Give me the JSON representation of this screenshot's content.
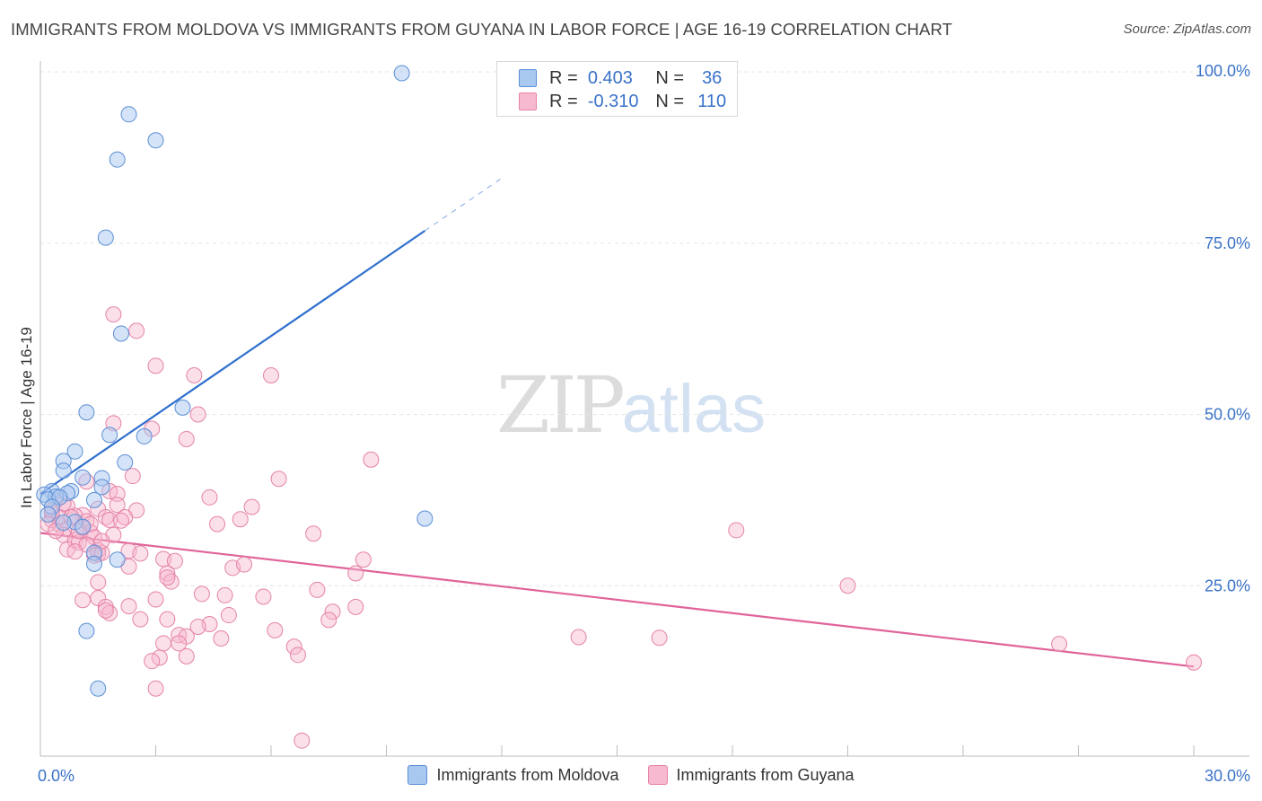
{
  "title": "IMMIGRANTS FROM MOLDOVA VS IMMIGRANTS FROM GUYANA IN LABOR FORCE | AGE 16-19 CORRELATION CHART",
  "source": "Source: ZipAtlas.com",
  "watermark": {
    "zip": "ZIP",
    "atlas": "atlas"
  },
  "legend": {
    "rows": [
      {
        "r_label": "R =",
        "r_value": "0.403",
        "n_label": "N =",
        "n_value": "36"
      },
      {
        "r_label": "R =",
        "r_value": "-0.310",
        "n_label": "N =",
        "n_value": "110"
      }
    ]
  },
  "chart_data": {
    "type": "scatter",
    "title": "IMMIGRANTS FROM MOLDOVA VS IMMIGRANTS FROM GUYANA IN LABOR FORCE | AGE 16-19 CORRELATION CHART",
    "xlabel": "",
    "ylabel": "In Labor Force | Age 16-19",
    "xlim": [
      0,
      30
    ],
    "ylim": [
      0,
      105
    ],
    "x_tick_labels": [
      "0.0%",
      "30.0%"
    ],
    "y_ticks": [
      25,
      50,
      75,
      100
    ],
    "y_tick_labels": [
      "25.0%",
      "50.0%",
      "75.0%",
      "100.0%"
    ],
    "grid": true,
    "legend_position": "top-center",
    "colors": {
      "moldova_fill": "#a9c8f0",
      "moldova_stroke": "#5b8fd6",
      "moldova_line": "#2f6fcd",
      "guyana_fill": "#f7b9cf",
      "guyana_stroke": "#e583a8",
      "guyana_line": "#e0639a",
      "axis_label": "#3a72c8",
      "grid": "#e5e5e5"
    },
    "series": [
      {
        "name": "Immigrants from Moldova",
        "r": 0.403,
        "n": 36,
        "trend": {
          "x0": 0,
          "y0": 38.4,
          "x1": 10.0,
          "y1": 76.8,
          "dash_to_x": 12.0
        },
        "points": [
          [
            9.4,
            99.8
          ],
          [
            2.3,
            93.8
          ],
          [
            3.0,
            90.0
          ],
          [
            2.0,
            87.2
          ],
          [
            1.7,
            75.8
          ],
          [
            2.1,
            61.8
          ],
          [
            1.2,
            50.3
          ],
          [
            3.7,
            51.0
          ],
          [
            1.8,
            47.0
          ],
          [
            2.7,
            46.8
          ],
          [
            0.9,
            44.6
          ],
          [
            0.6,
            43.2
          ],
          [
            2.2,
            43.0
          ],
          [
            0.6,
            41.8
          ],
          [
            1.1,
            40.8
          ],
          [
            1.6,
            40.7
          ],
          [
            1.6,
            39.4
          ],
          [
            0.8,
            38.8
          ],
          [
            0.7,
            38.5
          ],
          [
            0.3,
            38.8
          ],
          [
            0.1,
            38.3
          ],
          [
            0.4,
            38.0
          ],
          [
            0.2,
            37.6
          ],
          [
            0.5,
            37.9
          ],
          [
            1.4,
            37.5
          ],
          [
            0.3,
            36.5
          ],
          [
            0.2,
            35.4
          ],
          [
            0.9,
            34.3
          ],
          [
            1.1,
            33.6
          ],
          [
            10.0,
            34.8
          ],
          [
            1.4,
            29.8
          ],
          [
            1.4,
            28.2
          ],
          [
            2.0,
            28.8
          ],
          [
            1.2,
            18.4
          ],
          [
            1.5,
            10.0
          ],
          [
            0.6,
            34.2
          ]
        ]
      },
      {
        "name": "Immigrants from Guyana",
        "r": -0.31,
        "n": 110,
        "trend": {
          "x0": 0,
          "y0": 32.7,
          "x1": 30.0,
          "y1": 13.2
        },
        "points": [
          [
            1.9,
            64.6
          ],
          [
            2.5,
            62.2
          ],
          [
            3.0,
            57.1
          ],
          [
            4.0,
            55.7
          ],
          [
            6.0,
            55.7
          ],
          [
            4.1,
            50.0
          ],
          [
            1.9,
            48.7
          ],
          [
            2.9,
            47.9
          ],
          [
            3.8,
            46.4
          ],
          [
            8.6,
            43.4
          ],
          [
            2.4,
            41.0
          ],
          [
            6.2,
            40.6
          ],
          [
            1.2,
            40.2
          ],
          [
            1.8,
            38.8
          ],
          [
            4.4,
            37.9
          ],
          [
            2.0,
            38.4
          ],
          [
            0.4,
            37.4
          ],
          [
            0.7,
            36.6
          ],
          [
            2.0,
            36.8
          ],
          [
            5.5,
            36.5
          ],
          [
            1.5,
            36.2
          ],
          [
            2.5,
            36.0
          ],
          [
            0.3,
            35.6
          ],
          [
            1.1,
            35.3
          ],
          [
            0.9,
            35.2
          ],
          [
            1.7,
            35.0
          ],
          [
            2.2,
            35.0
          ],
          [
            5.2,
            34.7
          ],
          [
            0.3,
            34.6
          ],
          [
            1.2,
            34.4
          ],
          [
            4.6,
            34.0
          ],
          [
            1.8,
            34.6
          ],
          [
            0.5,
            33.9
          ],
          [
            0.7,
            33.4
          ],
          [
            1.1,
            33.5
          ],
          [
            1.3,
            32.8
          ],
          [
            7.1,
            32.6
          ],
          [
            1.9,
            32.4
          ],
          [
            1.4,
            32.1
          ],
          [
            18.1,
            33.1
          ],
          [
            0.6,
            32.4
          ],
          [
            0.9,
            31.6
          ],
          [
            1.0,
            31.3
          ],
          [
            1.2,
            31.0
          ],
          [
            0.7,
            30.3
          ],
          [
            1.5,
            30.2
          ],
          [
            2.3,
            30.1
          ],
          [
            1.5,
            29.6
          ],
          [
            1.4,
            29.4
          ],
          [
            1.6,
            29.8
          ],
          [
            3.2,
            28.9
          ],
          [
            3.5,
            28.6
          ],
          [
            8.4,
            28.8
          ],
          [
            2.3,
            27.8
          ],
          [
            5.0,
            27.6
          ],
          [
            5.3,
            28.1
          ],
          [
            8.2,
            26.8
          ],
          [
            3.3,
            26.8
          ],
          [
            3.4,
            25.6
          ],
          [
            1.5,
            25.5
          ],
          [
            3.3,
            26.2
          ],
          [
            21.0,
            25.0
          ],
          [
            7.2,
            24.4
          ],
          [
            4.2,
            23.8
          ],
          [
            4.8,
            23.6
          ],
          [
            5.8,
            23.4
          ],
          [
            1.1,
            22.9
          ],
          [
            1.5,
            23.2
          ],
          [
            3.0,
            23.0
          ],
          [
            2.3,
            22.0
          ],
          [
            1.7,
            21.9
          ],
          [
            8.2,
            21.9
          ],
          [
            1.8,
            21.0
          ],
          [
            7.6,
            21.2
          ],
          [
            1.7,
            21.4
          ],
          [
            4.9,
            20.7
          ],
          [
            2.6,
            20.1
          ],
          [
            3.3,
            20.1
          ],
          [
            7.5,
            20.0
          ],
          [
            4.4,
            19.4
          ],
          [
            4.1,
            19.0
          ],
          [
            6.1,
            18.5
          ],
          [
            3.6,
            17.8
          ],
          [
            4.7,
            17.3
          ],
          [
            3.8,
            17.6
          ],
          [
            3.2,
            16.6
          ],
          [
            3.6,
            16.6
          ],
          [
            14.0,
            17.5
          ],
          [
            16.1,
            17.4
          ],
          [
            26.5,
            16.5
          ],
          [
            6.6,
            16.1
          ],
          [
            6.7,
            14.9
          ],
          [
            3.1,
            14.5
          ],
          [
            3.8,
            14.7
          ],
          [
            2.9,
            14.0
          ],
          [
            30.0,
            13.8
          ],
          [
            3.0,
            10.0
          ],
          [
            6.8,
            2.4
          ],
          [
            0.3,
            36.0
          ],
          [
            0.5,
            35.0
          ],
          [
            0.8,
            35.0
          ],
          [
            0.2,
            34.0
          ],
          [
            1.0,
            33.0
          ],
          [
            0.6,
            37.0
          ],
          [
            1.3,
            34.0
          ],
          [
            2.1,
            34.5
          ],
          [
            0.4,
            33.0
          ],
          [
            1.6,
            31.5
          ],
          [
            0.9,
            30.0
          ],
          [
            2.6,
            29.7
          ]
        ]
      }
    ]
  }
}
